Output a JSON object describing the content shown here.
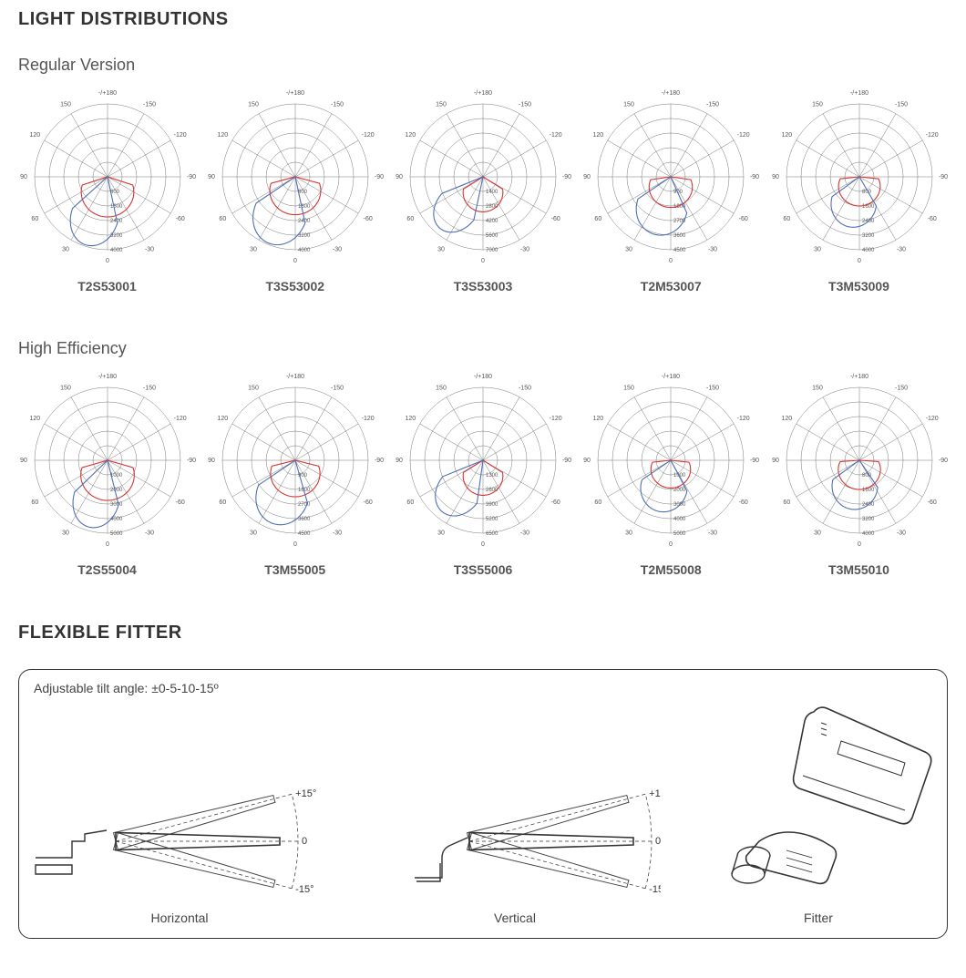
{
  "colors": {
    "grid": "#555555",
    "tick_text": "#555555",
    "curve_red": "#d8342f",
    "curve_blue": "#4f6fb3",
    "title": "#333333",
    "subtitle": "#555555",
    "label": "#555555",
    "border": "#333333"
  },
  "typography": {
    "section_title_size": 20,
    "section_title_weight": "bold",
    "subsection_size": 18,
    "chart_label_size": 14,
    "chart_label_weight": "bold",
    "tick_label_size": 7
  },
  "section_light": {
    "title": "LIGHT DISTRIBUTIONS",
    "polar_spec": {
      "type": "polar",
      "outer_radius": 80,
      "rings": 5,
      "angle_labels": [
        -180,
        -150,
        -120,
        -90,
        -60,
        -30,
        0,
        30,
        60,
        90,
        120,
        150,
        180
      ],
      "angle_label_format": {
        "top": "-/+180"
      }
    },
    "groups": [
      {
        "title": "Regular Version",
        "charts": [
          {
            "label": "T2S53001",
            "radial_ticks": [
              800,
              1600,
              2400,
              3200,
              4000
            ],
            "red_lobe": {
              "halfwidth_deg": 72,
              "depth": 0.55,
              "skew": 0
            },
            "blue_lobe": {
              "halfwidth_deg": 30,
              "depth": 0.98,
              "skew": 18
            }
          },
          {
            "label": "T3S53002",
            "radial_ticks": [
              800,
              1600,
              2400,
              3200,
              4000
            ],
            "red_lobe": {
              "halfwidth_deg": 75,
              "depth": 0.52,
              "skew": 0
            },
            "blue_lobe": {
              "halfwidth_deg": 34,
              "depth": 0.98,
              "skew": 22
            }
          },
          {
            "label": "T3S53003",
            "radial_ticks": [
              1400,
              2800,
              4200,
              5600,
              7000
            ],
            "red_lobe": {
              "halfwidth_deg": 58,
              "depth": 0.48,
              "skew": 0
            },
            "blue_lobe": {
              "halfwidth_deg": 28,
              "depth": 0.92,
              "skew": 40
            }
          },
          {
            "label": "T2M53007",
            "radial_ticks": [
              900,
              1800,
              2700,
              3600,
              4500
            ],
            "red_lobe": {
              "halfwidth_deg": 82,
              "depth": 0.42,
              "skew": 0
            },
            "blue_lobe": {
              "halfwidth_deg": 40,
              "depth": 0.82,
              "skew": 16
            }
          },
          {
            "label": "T3M53009",
            "radial_ticks": [
              800,
              1600,
              2400,
              3200,
              4000
            ],
            "red_lobe": {
              "halfwidth_deg": 84,
              "depth": 0.4,
              "skew": 0
            },
            "blue_lobe": {
              "halfwidth_deg": 42,
              "depth": 0.7,
              "skew": 12
            }
          }
        ]
      },
      {
        "title": "High Efficiency",
        "charts": [
          {
            "label": "T2S55004",
            "radial_ticks": [
              1000,
              2000,
              3000,
              4000,
              5000
            ],
            "red_lobe": {
              "halfwidth_deg": 74,
              "depth": 0.55,
              "skew": 0
            },
            "blue_lobe": {
              "halfwidth_deg": 30,
              "depth": 0.95,
              "skew": 16
            }
          },
          {
            "label": "T3M55005",
            "radial_ticks": [
              900,
              1800,
              2700,
              3600,
              4500
            ],
            "red_lobe": {
              "halfwidth_deg": 76,
              "depth": 0.5,
              "skew": 0
            },
            "blue_lobe": {
              "halfwidth_deg": 36,
              "depth": 0.92,
              "skew": 20
            }
          },
          {
            "label": "T3S55006",
            "radial_ticks": [
              1300,
              2600,
              3900,
              5200,
              6500
            ],
            "red_lobe": {
              "halfwidth_deg": 58,
              "depth": 0.48,
              "skew": 0
            },
            "blue_lobe": {
              "halfwidth_deg": 30,
              "depth": 0.9,
              "skew": 38
            }
          },
          {
            "label": "T2M55008",
            "radial_ticks": [
              1000,
              2000,
              3000,
              4000,
              5000
            ],
            "red_lobe": {
              "halfwidth_deg": 84,
              "depth": 0.38,
              "skew": 0
            },
            "blue_lobe": {
              "halfwidth_deg": 42,
              "depth": 0.72,
              "skew": 14
            }
          },
          {
            "label": "T3M55010",
            "radial_ticks": [
              800,
              1600,
              2400,
              3200,
              4000
            ],
            "red_lobe": {
              "halfwidth_deg": 86,
              "depth": 0.4,
              "skew": 0
            },
            "blue_lobe": {
              "halfwidth_deg": 44,
              "depth": 0.68,
              "skew": 10
            }
          }
        ]
      }
    ]
  },
  "section_fitter": {
    "title": "FLEXIBLE FITTER",
    "note": "Adjustable tilt angle: ±0-5-10-15º",
    "angle_marks": [
      "+15°",
      "0",
      "-15°"
    ],
    "panels": [
      {
        "label": "Horizontal"
      },
      {
        "label": "Vertical"
      },
      {
        "label": "Fitter"
      }
    ]
  }
}
